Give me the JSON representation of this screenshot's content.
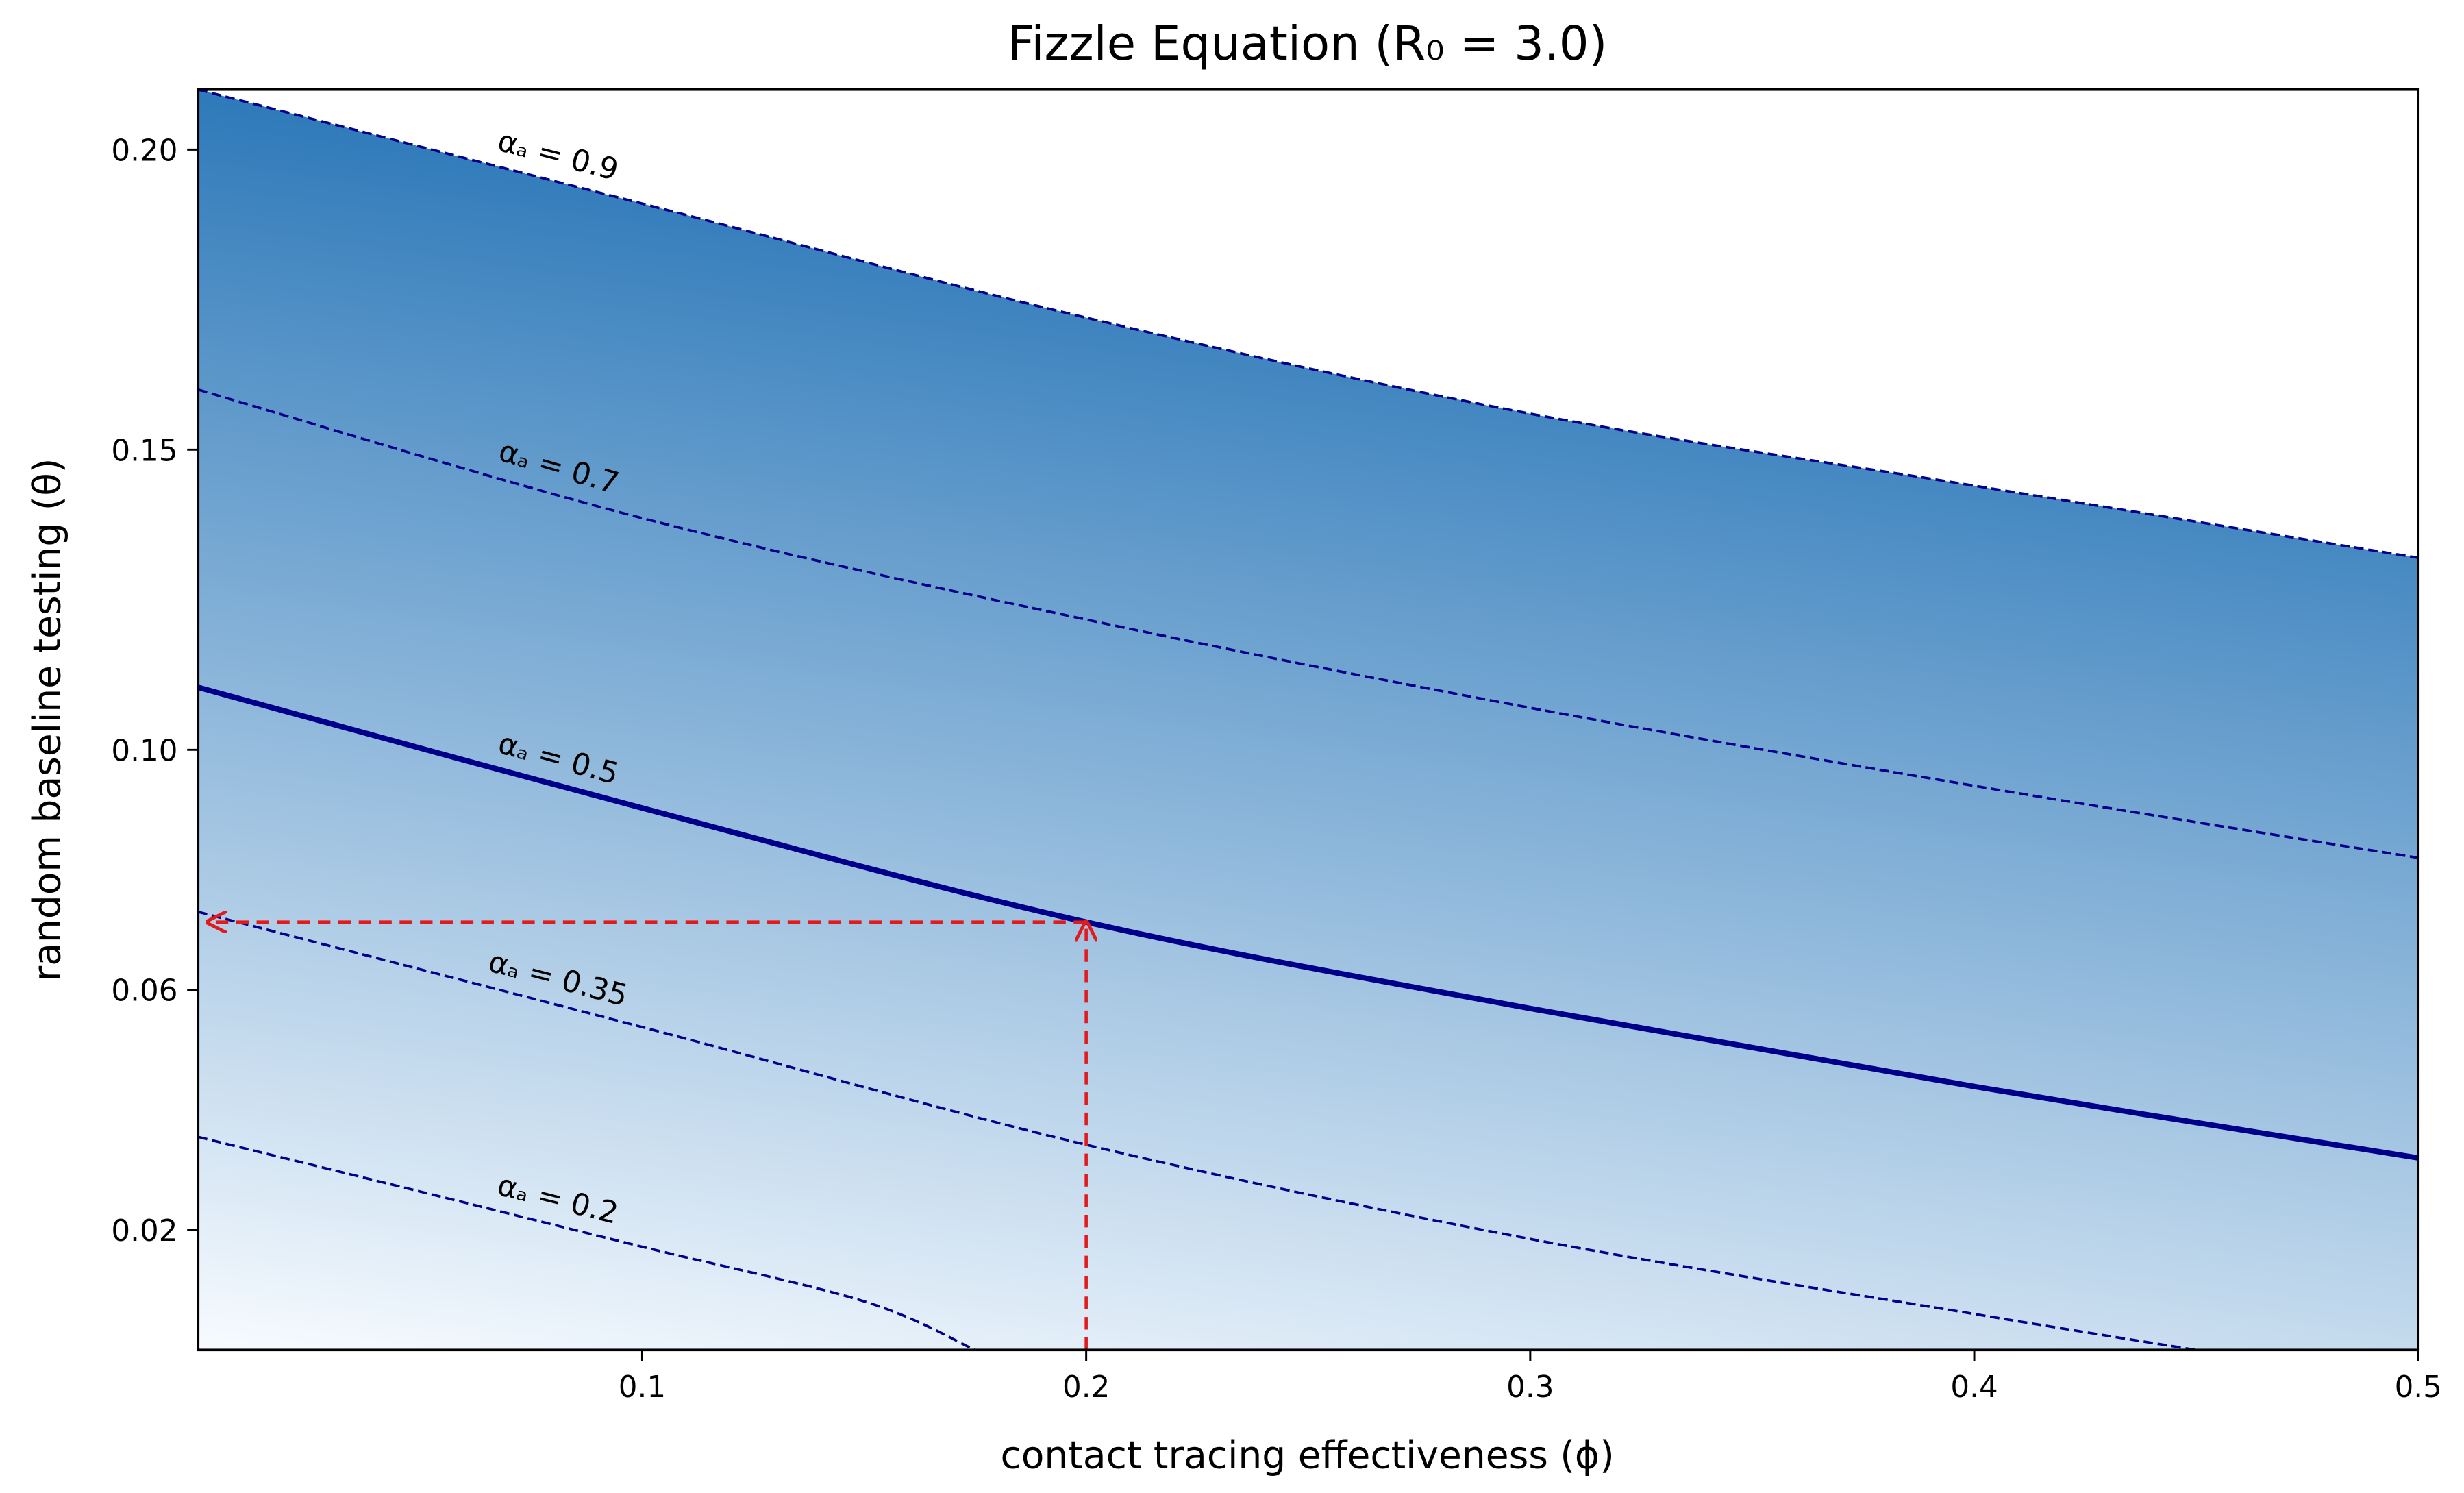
{
  "chart_data": {
    "type": "contour-lines",
    "title": "Fizzle Equation (R₀ = 3.0)",
    "x_label": "contact tracing effectiveness (ϕ)",
    "y_label": "random baseline testing (θ)",
    "xlim": [
      0,
      0.5
    ],
    "ylim": [
      0,
      0.21
    ],
    "xticks": [
      0.1,
      0.2,
      0.3,
      0.4,
      0.5
    ],
    "yticks": [
      0.02,
      0.06,
      {
        "value": 0.1,
        "label": "0.10"
      },
      0.15,
      {
        "value": 0.2,
        "label": "0.20"
      }
    ],
    "fill_gradient": [
      "#f7fbff",
      "#2171b5"
    ],
    "series": [
      {
        "name": "αₐ = 0.9",
        "color": "#00008b",
        "linestyle": "dashed",
        "x": [
          0,
          0.1,
          0.2,
          0.3,
          0.4,
          0.5
        ],
        "values": [
          0.21,
          0.191,
          0.172,
          0.156,
          0.144,
          0.132
        ]
      },
      {
        "name": "αₐ = 0.7",
        "color": "#00008b",
        "linestyle": "dashed",
        "x": [
          0,
          0.1,
          0.2,
          0.3,
          0.4,
          0.5
        ],
        "values": [
          0.16,
          0.1386,
          0.1217,
          0.107,
          0.094,
          0.082
        ]
      },
      {
        "name": "αₐ = 0.5",
        "color": "#00008b",
        "linestyle": "solid",
        "x": [
          0,
          0.1,
          0.2,
          0.3,
          0.4,
          0.5
        ],
        "values": [
          0.1104,
          0.0903,
          0.0713,
          0.0569,
          0.0439,
          0.032
        ]
      },
      {
        "name": "αₐ = 0.35",
        "color": "#00008b",
        "linestyle": "dashed",
        "x": [
          0,
          0.1,
          0.2,
          0.3,
          0.4,
          0.45
        ],
        "values": [
          0.073,
          0.0538,
          0.0342,
          0.0185,
          0.006,
          0
        ]
      },
      {
        "name": "αₐ = 0.2",
        "color": "#00008b",
        "linestyle": "dashed",
        "x": [
          0,
          0.05,
          0.1,
          0.15,
          0.175
        ],
        "values": [
          0.0355,
          0.0264,
          0.0172,
          0.0081,
          0
        ]
      }
    ],
    "reference_point": {
      "x": 0.2,
      "y": 0.0713,
      "color": "#e31a1c"
    }
  }
}
